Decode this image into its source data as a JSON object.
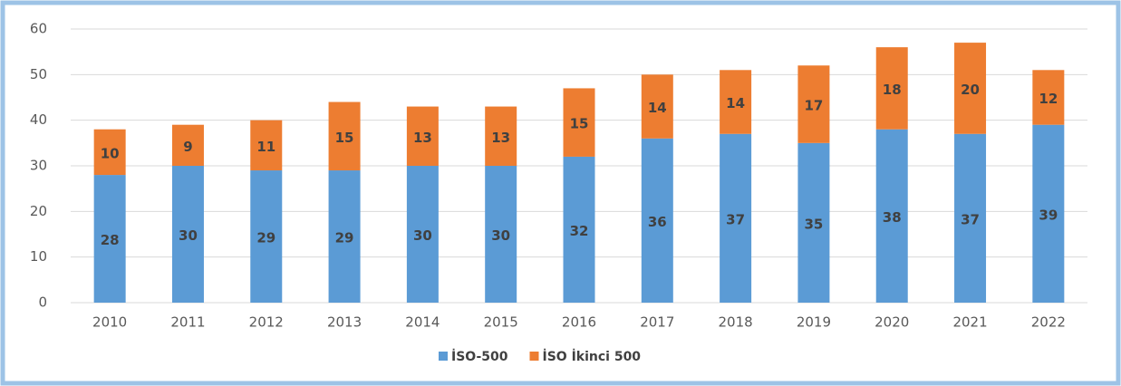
{
  "chart_data": {
    "type": "stacked_bar",
    "categories": [
      "2010",
      "2011",
      "2012",
      "2013",
      "2014",
      "2015",
      "2016",
      "2017",
      "2018",
      "2019",
      "2020",
      "2021",
      "2022"
    ],
    "series": [
      {
        "name": "İSO-500",
        "color": "#5b9bd5",
        "values": [
          28,
          30,
          29,
          29,
          30,
          30,
          32,
          36,
          37,
          35,
          38,
          37,
          39
        ]
      },
      {
        "name": "İSO İkinci 500",
        "color": "#ed7d31",
        "values": [
          10,
          9,
          11,
          15,
          13,
          13,
          15,
          14,
          14,
          17,
          18,
          20,
          12
        ]
      }
    ],
    "ylim": [
      0,
      60
    ],
    "yticks": [
      0,
      10,
      20,
      30,
      40,
      50,
      60
    ],
    "grid": true,
    "legend": "bottom"
  }
}
